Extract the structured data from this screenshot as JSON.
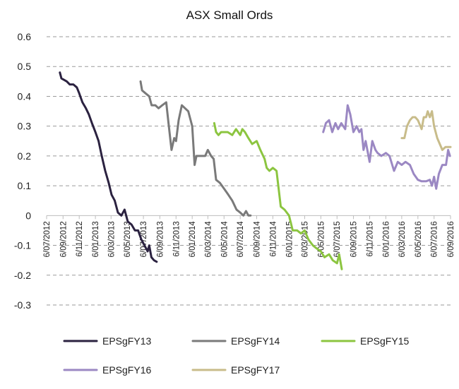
{
  "chart_data": {
    "type": "line",
    "title": "ASX Small Ords",
    "xlabel": "",
    "ylabel": "",
    "ylim": [
      -0.3,
      0.6
    ],
    "yticks": [
      "0.6",
      "0.5",
      "0.4",
      "0.3",
      "0.2",
      "0.1",
      "0",
      "-0.1",
      "-0.2",
      "-0.3"
    ],
    "ytick_values": [
      0.6,
      0.5,
      0.4,
      0.3,
      0.2,
      0.1,
      0,
      -0.1,
      -0.2,
      -0.3
    ],
    "xlim": [
      "2012-07-06",
      "2016-09-06"
    ],
    "xtick_labels": [
      "6/07/2012",
      "6/09/2012",
      "6/11/2012",
      "6/01/2013",
      "6/03/2013",
      "6/05/2013",
      "6/07/2013",
      "6/09/2013",
      "6/11/2013",
      "6/01/2014",
      "6/03/2014",
      "6/05/2014",
      "6/07/2014",
      "6/09/2014",
      "6/11/2014",
      "6/01/2015",
      "6/03/2015",
      "6/05/2015",
      "6/07/2015",
      "6/09/2015",
      "6/11/2015",
      "6/01/2016",
      "6/03/2016",
      "6/05/2016",
      "6/07/2016",
      "6/09/2016"
    ],
    "xtick_dates": [
      "2012-07-06",
      "2012-09-06",
      "2012-11-06",
      "2013-01-06",
      "2013-03-06",
      "2013-05-06",
      "2013-07-06",
      "2013-09-06",
      "2013-11-06",
      "2014-01-06",
      "2014-03-06",
      "2014-05-06",
      "2014-07-06",
      "2014-09-06",
      "2014-11-06",
      "2015-01-06",
      "2015-03-06",
      "2015-05-06",
      "2015-07-06",
      "2015-09-06",
      "2015-11-06",
      "2016-01-06",
      "2016-03-06",
      "2016-05-06",
      "2016-07-06",
      "2016-09-06"
    ],
    "grid": true,
    "legend_position": "bottom",
    "series": [
      {
        "name": "EPSgFY13",
        "color": "#2b2240",
        "points": [
          [
            "2012-08-25",
            0.48
          ],
          [
            "2012-08-31",
            0.46
          ],
          [
            "2012-09-10",
            0.455
          ],
          [
            "2012-09-20",
            0.45
          ],
          [
            "2012-10-01",
            0.44
          ],
          [
            "2012-10-15",
            0.44
          ],
          [
            "2012-10-28",
            0.43
          ],
          [
            "2012-11-06",
            0.41
          ],
          [
            "2012-11-18",
            0.38
          ],
          [
            "2012-12-01",
            0.36
          ],
          [
            "2012-12-12",
            0.34
          ],
          [
            "2012-12-24",
            0.31
          ],
          [
            "2013-01-06",
            0.28
          ],
          [
            "2013-01-18",
            0.25
          ],
          [
            "2013-01-30",
            0.2
          ],
          [
            "2013-02-12",
            0.15
          ],
          [
            "2013-02-25",
            0.11
          ],
          [
            "2013-03-08",
            0.07
          ],
          [
            "2013-03-20",
            0.05
          ],
          [
            "2013-04-01",
            0.01
          ],
          [
            "2013-04-14",
            0.0
          ],
          [
            "2013-04-26",
            0.02
          ],
          [
            "2013-05-08",
            -0.02
          ],
          [
            "2013-05-22",
            -0.03
          ],
          [
            "2013-06-04",
            -0.05
          ],
          [
            "2013-06-16",
            -0.05
          ],
          [
            "2013-06-28",
            -0.08
          ],
          [
            "2013-07-10",
            -0.1
          ],
          [
            "2013-07-22",
            -0.12
          ],
          [
            "2013-07-28",
            -0.1
          ],
          [
            "2013-08-05",
            -0.14
          ],
          [
            "2013-08-15",
            -0.15
          ],
          [
            "2013-08-25",
            -0.155
          ]
        ]
      },
      {
        "name": "EPSgFY14",
        "color": "#7a7a7a",
        "points": [
          [
            "2013-06-25",
            0.45
          ],
          [
            "2013-07-01",
            0.42
          ],
          [
            "2013-07-14",
            0.41
          ],
          [
            "2013-07-28",
            0.4
          ],
          [
            "2013-08-06",
            0.37
          ],
          [
            "2013-08-20",
            0.37
          ],
          [
            "2013-09-01",
            0.36
          ],
          [
            "2013-09-15",
            0.37
          ],
          [
            "2013-09-30",
            0.38
          ],
          [
            "2013-10-10",
            0.3
          ],
          [
            "2013-10-20",
            0.22
          ],
          [
            "2013-10-30",
            0.26
          ],
          [
            "2013-11-06",
            0.25
          ],
          [
            "2013-11-16",
            0.32
          ],
          [
            "2013-11-28",
            0.37
          ],
          [
            "2013-12-10",
            0.36
          ],
          [
            "2013-12-22",
            0.35
          ],
          [
            "2014-01-06",
            0.3
          ],
          [
            "2014-01-15",
            0.17
          ],
          [
            "2014-01-22",
            0.2
          ],
          [
            "2014-02-06",
            0.2
          ],
          [
            "2014-02-24",
            0.2
          ],
          [
            "2014-03-06",
            0.22
          ],
          [
            "2014-03-18",
            0.2
          ],
          [
            "2014-03-28",
            0.19
          ],
          [
            "2014-04-06",
            0.12
          ],
          [
            "2014-04-20",
            0.11
          ],
          [
            "2014-05-06",
            0.09
          ],
          [
            "2014-05-22",
            0.07
          ],
          [
            "2014-06-06",
            0.05
          ],
          [
            "2014-06-22",
            0.02
          ],
          [
            "2014-07-06",
            0.01
          ],
          [
            "2014-07-18",
            0.0
          ],
          [
            "2014-07-28",
            0.015
          ],
          [
            "2014-08-06",
            0.0
          ],
          [
            "2014-08-14",
            0.0
          ]
        ]
      },
      {
        "name": "EPSgFY15",
        "color": "#8cc540",
        "points": [
          [
            "2014-03-30",
            0.31
          ],
          [
            "2014-04-06",
            0.28
          ],
          [
            "2014-04-15",
            0.27
          ],
          [
            "2014-04-25",
            0.28
          ],
          [
            "2014-05-06",
            0.28
          ],
          [
            "2014-05-20",
            0.28
          ],
          [
            "2014-06-06",
            0.27
          ],
          [
            "2014-06-20",
            0.29
          ],
          [
            "2014-07-06",
            0.27
          ],
          [
            "2014-07-14",
            0.29
          ],
          [
            "2014-07-24",
            0.28
          ],
          [
            "2014-08-06",
            0.26
          ],
          [
            "2014-08-20",
            0.24
          ],
          [
            "2014-09-06",
            0.25
          ],
          [
            "2014-09-20",
            0.22
          ],
          [
            "2014-10-06",
            0.19
          ],
          [
            "2014-10-14",
            0.16
          ],
          [
            "2014-10-24",
            0.15
          ],
          [
            "2014-11-06",
            0.16
          ],
          [
            "2014-11-20",
            0.15
          ],
          [
            "2014-12-06",
            0.03
          ],
          [
            "2014-12-20",
            0.02
          ],
          [
            "2015-01-06",
            0.0
          ],
          [
            "2015-01-20",
            -0.05
          ],
          [
            "2015-02-06",
            -0.05
          ],
          [
            "2015-02-20",
            -0.06
          ],
          [
            "2015-03-06",
            -0.05
          ],
          [
            "2015-03-20",
            -0.08
          ],
          [
            "2015-04-06",
            -0.1
          ],
          [
            "2015-04-20",
            -0.11
          ],
          [
            "2015-05-06",
            -0.12
          ],
          [
            "2015-05-20",
            -0.14
          ],
          [
            "2015-06-06",
            -0.13
          ],
          [
            "2015-06-20",
            -0.15
          ],
          [
            "2015-07-06",
            -0.16
          ],
          [
            "2015-07-14",
            -0.13
          ],
          [
            "2015-07-24",
            -0.18
          ]
        ]
      },
      {
        "name": "EPSgFY16",
        "color": "#9b88c3",
        "points": [
          [
            "2015-05-15",
            0.28
          ],
          [
            "2015-05-25",
            0.31
          ],
          [
            "2015-06-06",
            0.32
          ],
          [
            "2015-06-18",
            0.28
          ],
          [
            "2015-06-30",
            0.31
          ],
          [
            "2015-07-10",
            0.29
          ],
          [
            "2015-07-22",
            0.31
          ],
          [
            "2015-08-06",
            0.29
          ],
          [
            "2015-08-15",
            0.37
          ],
          [
            "2015-08-25",
            0.34
          ],
          [
            "2015-09-06",
            0.28
          ],
          [
            "2015-09-18",
            0.3
          ],
          [
            "2015-09-28",
            0.28
          ],
          [
            "2015-10-06",
            0.29
          ],
          [
            "2015-10-14",
            0.22
          ],
          [
            "2015-10-22",
            0.25
          ],
          [
            "2015-11-06",
            0.18
          ],
          [
            "2015-11-16",
            0.25
          ],
          [
            "2015-11-28",
            0.22
          ],
          [
            "2015-12-06",
            0.21
          ],
          [
            "2015-12-20",
            0.2
          ],
          [
            "2016-01-06",
            0.21
          ],
          [
            "2016-01-20",
            0.2
          ],
          [
            "2016-02-06",
            0.15
          ],
          [
            "2016-02-20",
            0.18
          ],
          [
            "2016-03-06",
            0.17
          ],
          [
            "2016-03-20",
            0.18
          ],
          [
            "2016-04-06",
            0.17
          ],
          [
            "2016-04-20",
            0.14
          ],
          [
            "2016-05-06",
            0.12
          ],
          [
            "2016-05-20",
            0.115
          ],
          [
            "2016-06-06",
            0.115
          ],
          [
            "2016-06-20",
            0.12
          ],
          [
            "2016-06-28",
            0.1
          ],
          [
            "2016-07-06",
            0.13
          ],
          [
            "2016-07-14",
            0.09
          ],
          [
            "2016-07-24",
            0.14
          ],
          [
            "2016-08-06",
            0.17
          ],
          [
            "2016-08-20",
            0.17
          ],
          [
            "2016-08-28",
            0.22
          ],
          [
            "2016-09-04",
            0.2
          ]
        ]
      },
      {
        "name": "EPSgFY17",
        "color": "#c8bc8a",
        "points": [
          [
            "2016-03-06",
            0.26
          ],
          [
            "2016-03-16",
            0.26
          ],
          [
            "2016-03-26",
            0.3
          ],
          [
            "2016-04-06",
            0.32
          ],
          [
            "2016-04-16",
            0.33
          ],
          [
            "2016-04-26",
            0.33
          ],
          [
            "2016-05-06",
            0.32
          ],
          [
            "2016-05-20",
            0.29
          ],
          [
            "2016-05-28",
            0.33
          ],
          [
            "2016-06-06",
            0.33
          ],
          [
            "2016-06-12",
            0.35
          ],
          [
            "2016-06-20",
            0.33
          ],
          [
            "2016-06-28",
            0.35
          ],
          [
            "2016-07-06",
            0.3
          ],
          [
            "2016-07-18",
            0.26
          ],
          [
            "2016-08-06",
            0.22
          ],
          [
            "2016-08-18",
            0.23
          ],
          [
            "2016-09-06",
            0.23
          ]
        ]
      }
    ]
  }
}
